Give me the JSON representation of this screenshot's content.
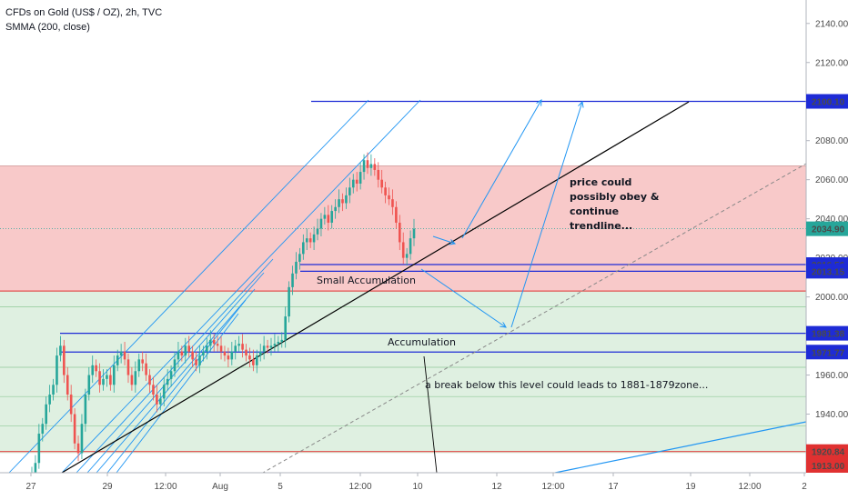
{
  "chart_data": {
    "type": "candlestick",
    "title": "CFDs on Gold (US$ / OZ), 2h, TVC",
    "indicator": "SMMA (200, close)",
    "ylim": [
      1910,
      2152
    ],
    "y_ticks": [
      1940,
      1960,
      2000,
      2020,
      2040,
      2060,
      2080,
      2120,
      2140
    ],
    "price_labels": [
      {
        "value": 2100.1,
        "text": "2100.10",
        "color": "#1e2bd6"
      },
      {
        "value": 2034.9,
        "text": "2034.90",
        "color": "#26a69a"
      },
      {
        "value": 2016.56,
        "text": "2016.56",
        "color": "#1e2bd6"
      },
      {
        "value": 2013.15,
        "text": "2013.15",
        "color": "#1e2bd6"
      },
      {
        "value": 1981.38,
        "text": "1981.38",
        "color": "#1e2bd6"
      },
      {
        "value": 1971.77,
        "text": "1971.77",
        "color": "#1e2bd6"
      },
      {
        "value": 1920.84,
        "text": "1920.84",
        "color": "#e03131"
      },
      {
        "value": 1913.0,
        "text": "1913.00",
        "color": "#e03131"
      }
    ],
    "x_ticks": [
      "27",
      "29",
      "12:00",
      "Aug",
      "5",
      "12:00",
      "10",
      "12",
      "12:00",
      "17",
      "19",
      "12:00",
      "2"
    ],
    "zones": [
      {
        "name": "resistance",
        "from": 2003,
        "to": 2067,
        "color": "#f8c9c9"
      },
      {
        "name": "support",
        "from": 1920,
        "to": 2003,
        "color": "#dff0e1"
      }
    ],
    "annotations": {
      "small_accumulation": "Small Accumulation",
      "accumulation": "Accumulation",
      "break_note": "a break below this level could leads to 1881-1879zone...",
      "trend_note_lines": [
        "price could",
        "possibly obey &",
        "continue",
        "trendline..."
      ]
    },
    "series": [
      {
        "type": "close",
        "values": [
          1910,
          1915,
          1930,
          1935,
          1945,
          1950,
          1955,
          1970,
          1975,
          1960,
          1950,
          1940,
          1925,
          1920,
          1935,
          1950,
          1960,
          1965,
          1962,
          1955,
          1958,
          1960,
          1955,
          1965,
          1970,
          1972,
          1968,
          1960,
          1955,
          1962,
          1968,
          1966,
          1960,
          1955,
          1950,
          1945,
          1948,
          1955,
          1958,
          1962,
          1968,
          1972,
          1970,
          1975,
          1972,
          1968,
          1965,
          1970,
          1972,
          1975,
          1978,
          1976,
          1975,
          1972,
          1970,
          1968,
          1972,
          1975,
          1976,
          1973,
          1970,
          1968,
          1965,
          1970,
          1972,
          1975,
          1974,
          1975,
          1976,
          1977,
          1978,
          1990,
          2005,
          2012,
          2018,
          2022,
          2028,
          2030,
          2028,
          2032,
          2035,
          2040,
          2042,
          2038,
          2044,
          2046,
          2050,
          2048,
          2052,
          2056,
          2060,
          2058,
          2064,
          2070,
          2066,
          2068,
          2065,
          2060,
          2056,
          2052,
          2050,
          2046,
          2038,
          2028,
          2020,
          2022,
          2030,
          2034.9
        ]
      }
    ]
  }
}
